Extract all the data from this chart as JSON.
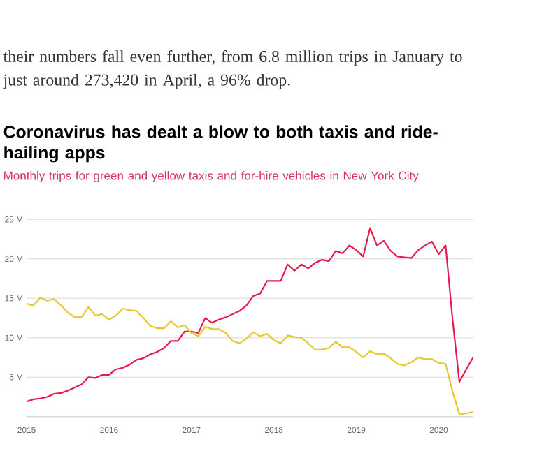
{
  "chart_data": {
    "type": "line",
    "title": "Coronavirus has dealt a blow to both taxis and ride-hailing apps",
    "subtitle": "Monthly trips for green and yellow taxis and for-hire vehicles in New York City",
    "annotations": [
      "their numbers fall even further, from 6.8 million trips in January to just around 273,420 in April, a 96% drop."
    ],
    "x": [
      "2015-01",
      "2015-02",
      "2015-03",
      "2015-04",
      "2015-05",
      "2015-06",
      "2015-07",
      "2015-08",
      "2015-09",
      "2015-10",
      "2015-11",
      "2015-12",
      "2016-01",
      "2016-02",
      "2016-03",
      "2016-04",
      "2016-05",
      "2016-06",
      "2016-07",
      "2016-08",
      "2016-09",
      "2016-10",
      "2016-11",
      "2016-12",
      "2017-01",
      "2017-02",
      "2017-03",
      "2017-04",
      "2017-05",
      "2017-06",
      "2017-07",
      "2017-08",
      "2017-09",
      "2017-10",
      "2017-11",
      "2017-12",
      "2018-01",
      "2018-02",
      "2018-03",
      "2018-04",
      "2018-05",
      "2018-06",
      "2018-07",
      "2018-08",
      "2018-09",
      "2018-10",
      "2018-11",
      "2018-12",
      "2019-01",
      "2019-02",
      "2019-03",
      "2019-04",
      "2019-05",
      "2019-06",
      "2019-07",
      "2019-08",
      "2019-09",
      "2019-10",
      "2019-11",
      "2019-12",
      "2020-01",
      "2020-02",
      "2020-03",
      "2020-04",
      "2020-05",
      "2020-06"
    ],
    "series": [
      {
        "color": "#e8194b",
        "values": [
          1.9,
          2.2,
          2.3,
          2.5,
          2.9,
          3.0,
          3.3,
          3.7,
          4.1,
          5.0,
          4.9,
          5.3,
          5.3,
          6.0,
          6.2,
          6.6,
          7.2,
          7.4,
          7.9,
          8.2,
          8.7,
          9.6,
          9.6,
          10.8,
          10.8,
          10.6,
          12.5,
          11.9,
          12.3,
          12.6,
          13.0,
          13.4,
          14.1,
          15.3,
          15.6,
          17.2,
          17.2,
          17.2,
          19.3,
          18.5,
          19.3,
          18.8,
          19.5,
          19.9,
          19.7,
          21.0,
          20.7,
          21.7,
          21.1,
          20.3,
          23.9,
          21.7,
          22.3,
          21.0,
          20.3,
          20.2,
          20.1,
          21.1,
          21.7,
          22.2,
          20.6,
          21.7,
          12.4,
          4.4,
          6.0,
          7.5
        ]
      },
      {
        "color": "#e6c82a",
        "values": [
          14.3,
          14.1,
          15.1,
          14.7,
          14.9,
          14.1,
          13.2,
          12.6,
          12.6,
          13.9,
          12.8,
          13.0,
          12.3,
          12.8,
          13.7,
          13.5,
          13.4,
          12.5,
          11.5,
          11.2,
          11.2,
          12.1,
          11.3,
          11.6,
          10.6,
          10.2,
          11.4,
          11.1,
          11.1,
          10.6,
          9.6,
          9.3,
          9.9,
          10.7,
          10.2,
          10.5,
          9.7,
          9.3,
          10.3,
          10.1,
          10.0,
          9.3,
          8.5,
          8.5,
          8.7,
          9.5,
          8.8,
          8.8,
          8.2,
          7.5,
          8.3,
          7.9,
          8.0,
          7.4,
          6.7,
          6.5,
          6.9,
          7.5,
          7.3,
          7.3,
          6.8,
          6.7,
          3.2,
          0.3,
          0.4,
          0.6
        ]
      }
    ],
    "xlim": [
      "2015-01",
      "2020-06"
    ],
    "xticks": [
      "2015",
      "2016",
      "2017",
      "2018",
      "2019",
      "2020"
    ],
    "ylim": [
      0,
      25
    ],
    "yticks": [
      {
        "value": 5,
        "label": "5 M"
      },
      {
        "value": 10,
        "label": "10 M"
      },
      {
        "value": 15,
        "label": "15 M"
      },
      {
        "value": 20,
        "label": "20 M"
      },
      {
        "value": 25,
        "label": "25 M"
      }
    ],
    "grid": "y",
    "marker": "none",
    "line_style": "solid"
  }
}
